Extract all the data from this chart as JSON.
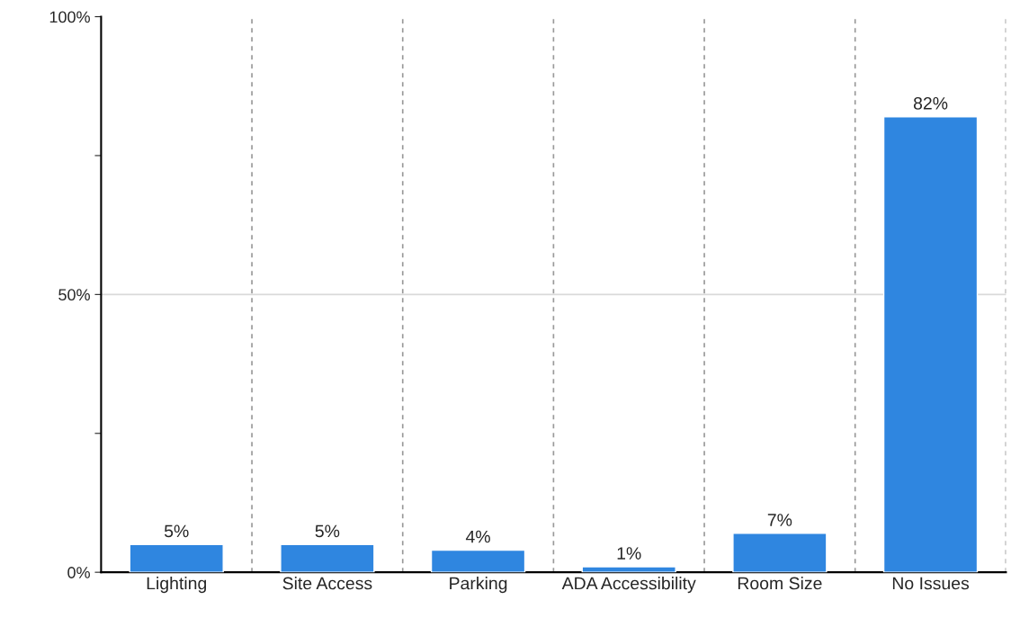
{
  "chart_data": {
    "type": "bar",
    "categories": [
      "Lighting",
      "Site Access",
      "Parking",
      "ADA Accessibility",
      "Room Size",
      "No Issues"
    ],
    "values": [
      5,
      5,
      4,
      1,
      7,
      82
    ],
    "value_labels": [
      "5%",
      "5%",
      "4%",
      "1%",
      "7%",
      "82%"
    ],
    "color": "#2f86e0",
    "ylim": [
      0,
      100
    ],
    "yticks": [
      {
        "value": 0,
        "label": "0%"
      },
      {
        "value": 25,
        "label": null
      },
      {
        "value": 50,
        "label": "50%"
      },
      {
        "value": 75,
        "label": null
      },
      {
        "value": 100,
        "label": "100%"
      }
    ],
    "ref_lines": [
      {
        "axis": "y",
        "value": 50,
        "color": "#d9d9d9"
      }
    ],
    "grid": "x"
  }
}
